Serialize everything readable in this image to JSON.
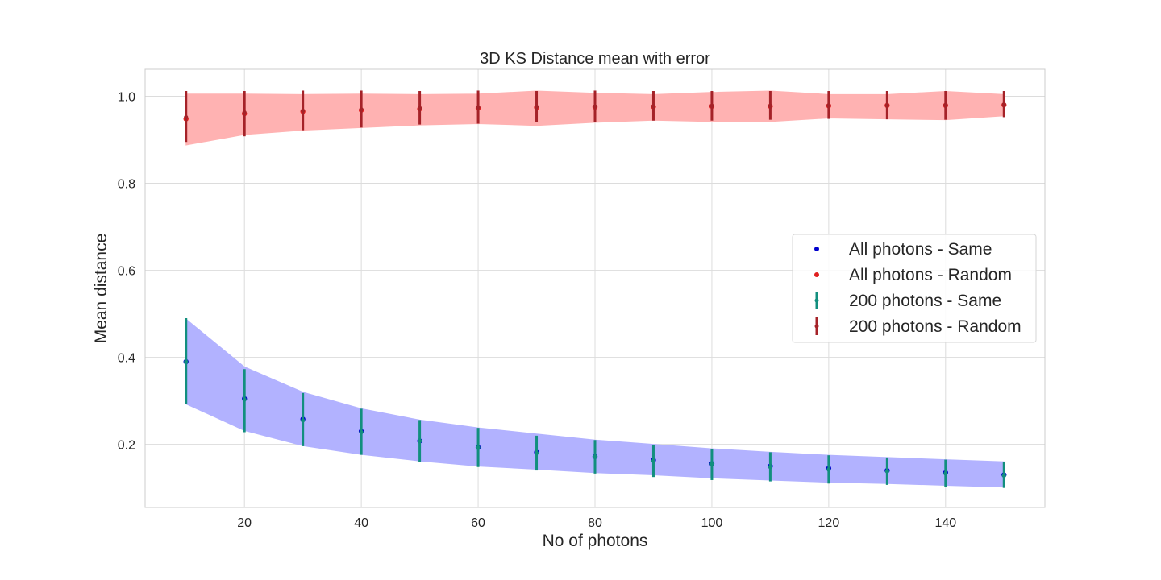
{
  "chart_data": {
    "type": "scatter",
    "title": "3D KS Distance mean with error",
    "xlabel": "No of photons",
    "ylabel": "Mean distance",
    "xlim": [
      3,
      157
    ],
    "ylim": [
      0.055,
      1.062
    ],
    "xticks": [
      20,
      40,
      60,
      80,
      100,
      120,
      140
    ],
    "yticks": [
      0.2,
      0.4,
      0.6,
      0.8,
      1.0
    ],
    "ytick_labels": [
      "0.2",
      "0.4",
      "0.6",
      "0.8",
      "1.0"
    ],
    "grid": true,
    "legend_position": "center-right",
    "x": [
      10,
      20,
      30,
      40,
      50,
      60,
      70,
      80,
      90,
      100,
      110,
      120,
      130,
      140,
      150
    ],
    "series": [
      {
        "name": "All photons - Same",
        "kind": "point",
        "color": "#0000cc",
        "values": [
          0.39,
          0.305,
          0.258,
          0.23,
          0.208,
          0.193,
          0.182,
          0.172,
          0.164,
          0.156,
          0.15,
          0.145,
          0.14,
          0.135,
          0.13
        ],
        "band_low": [
          0.293,
          0.232,
          0.197,
          0.177,
          0.162,
          0.15,
          0.143,
          0.135,
          0.13,
          0.123,
          0.118,
          0.113,
          0.11,
          0.106,
          0.102
        ],
        "band_high": [
          0.488,
          0.378,
          0.32,
          0.282,
          0.256,
          0.238,
          0.224,
          0.21,
          0.2,
          0.19,
          0.182,
          0.175,
          0.17,
          0.165,
          0.16
        ],
        "band_color": "#b2b2ff"
      },
      {
        "name": "All photons - Random",
        "kind": "point",
        "color": "#e02020",
        "values": [
          0.948,
          0.96,
          0.965,
          0.968,
          0.971,
          0.973,
          0.974,
          0.975,
          0.976,
          0.977,
          0.977,
          0.978,
          0.979,
          0.979,
          0.98
        ],
        "band_low": [
          0.888,
          0.912,
          0.922,
          0.928,
          0.934,
          0.937,
          0.933,
          0.94,
          0.945,
          0.942,
          0.942,
          0.95,
          0.948,
          0.946,
          0.955
        ],
        "band_high": [
          1.005,
          1.005,
          1.004,
          1.005,
          1.004,
          1.005,
          1.012,
          1.007,
          1.004,
          1.009,
          1.012,
          1.004,
          1.004,
          1.011,
          1.004
        ]
      },
      {
        "name": "200 photons - Same",
        "kind": "errorbar",
        "color": "#128f7e",
        "values": [
          0.39,
          0.303,
          0.255,
          0.228,
          0.208,
          0.193,
          0.18,
          0.172,
          0.162,
          0.155,
          0.148,
          0.142,
          0.138,
          0.133,
          0.128
        ],
        "err_low": [
          0.293,
          0.228,
          0.196,
          0.176,
          0.16,
          0.148,
          0.14,
          0.133,
          0.125,
          0.118,
          0.115,
          0.11,
          0.107,
          0.103,
          0.1
        ],
        "err_high": [
          0.49,
          0.373,
          0.318,
          0.282,
          0.256,
          0.238,
          0.22,
          0.21,
          0.198,
          0.19,
          0.182,
          0.175,
          0.17,
          0.165,
          0.16
        ]
      },
      {
        "name": "200 photons - Random",
        "kind": "errorbar",
        "color": "#a52228",
        "values": [
          0.952,
          0.963,
          0.967,
          0.97,
          0.973,
          0.975,
          0.976,
          0.977,
          0.977,
          0.978,
          0.978,
          0.979,
          0.979,
          0.98,
          0.981
        ],
        "err_low": [
          0.895,
          0.908,
          0.922,
          0.928,
          0.935,
          0.937,
          0.94,
          0.94,
          0.944,
          0.944,
          0.946,
          0.948,
          0.947,
          0.946,
          0.952
        ],
        "err_high": [
          1.012,
          1.012,
          1.013,
          1.013,
          1.012,
          1.013,
          1.012,
          1.013,
          1.012,
          1.012,
          1.012,
          1.012,
          1.012,
          1.012,
          1.012
        ]
      }
    ],
    "fill_colors": {
      "same_band": "#b2b2ff",
      "random_band": "#ffb2b2"
    }
  }
}
